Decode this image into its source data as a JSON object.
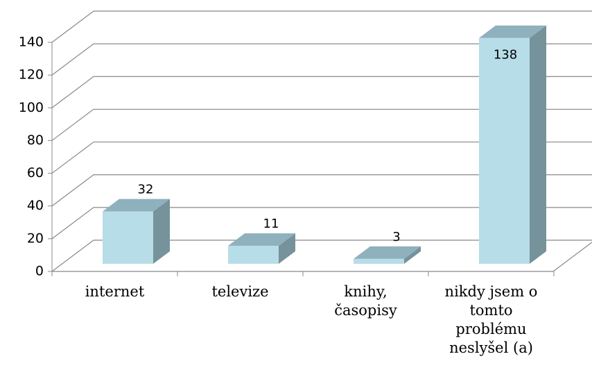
{
  "chart_data": {
    "type": "bar3d",
    "categories": [
      "internet",
      "televize",
      "knihy, časopisy",
      "nikdy jsem o tomto problému neslyšel (a)"
    ],
    "values": [
      32,
      11,
      3,
      138
    ],
    "color": "#b7dde8",
    "top_color": "#8fb1bd",
    "side_color": "#76929a",
    "ylim": [
      0,
      140
    ],
    "yticks": [
      0,
      20,
      40,
      60,
      80,
      100,
      120,
      140
    ],
    "grid": true
  }
}
